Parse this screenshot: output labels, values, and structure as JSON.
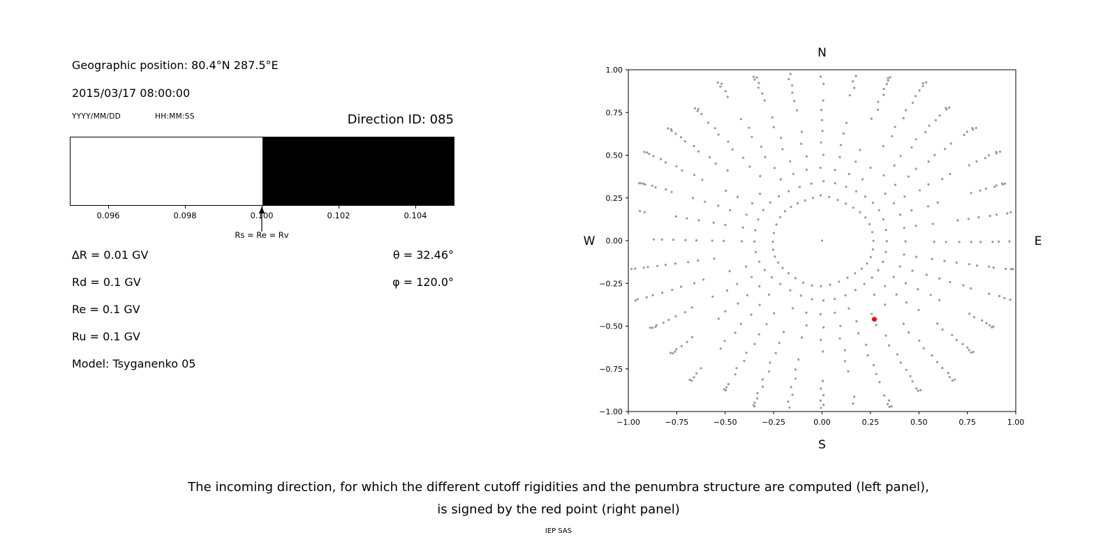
{
  "header": {
    "geo_position": "Geographic position: 80.4°N 287.5°E",
    "datetime": "2015/03/17 08:00:00",
    "date_format_label": "YYYY/MM/DD",
    "time_format_label": "HH:MM:SS",
    "direction_id": "Direction ID: 085"
  },
  "left_panel": {
    "arrow_label": "Rs = Re = Rv",
    "params_left": [
      "∆R = 0.01 GV",
      "Rd = 0.1 GV",
      "Re = 0.1 GV",
      "Ru = 0.1 GV",
      "Model: Tsyganenko 05"
    ],
    "params_right": [
      "θ = 32.46°",
      "φ = 120.0°"
    ]
  },
  "caption": {
    "line1": "The incoming direction, for which the different cutoff rigidities and the penumbra structure are computed (left panel),",
    "line2": "is signed by the red point (right panel)"
  },
  "footer": "IEP SAS",
  "colors": {
    "allowed": "#ffffff",
    "forbidden": "#000000",
    "dots": "#999999",
    "selected": "#ff0000",
    "axis": "#000000"
  },
  "chart_data": [
    {
      "type": "area",
      "name": "penumbra",
      "title": "Direction ID: 085",
      "xlabel": "",
      "xlim": [
        0.095,
        0.105
      ],
      "xticks": [
        0.096,
        0.098,
        0.1,
        0.102,
        0.104
      ],
      "tick_decimals": 3,
      "regions": [
        {
          "from": 0.095,
          "to": 0.1,
          "state": "allowed",
          "color": "#ffffff"
        },
        {
          "from": 0.1,
          "to": 0.105,
          "state": "forbidden",
          "color": "#000000"
        }
      ],
      "annotation": {
        "x": 0.1,
        "label": "Rs = Re = Rv"
      },
      "values": {
        "delta_R": 0.01,
        "Rd": 0.1,
        "Re": 0.1,
        "Ru": 0.1,
        "units": "GV",
        "model": "Tsyganenko 05"
      }
    },
    {
      "type": "scatter",
      "name": "incoming-directions",
      "xlim": [
        -1.0,
        1.0
      ],
      "ylim": [
        -1.0,
        1.0
      ],
      "xticks": [
        -1.0,
        -0.75,
        -0.5,
        -0.25,
        0.0,
        0.25,
        0.5,
        0.75,
        1.0
      ],
      "yticks": [
        -1.0,
        -0.75,
        -0.5,
        -0.25,
        0.0,
        0.25,
        0.5,
        0.75,
        1.0
      ],
      "tick_decimals": 2,
      "grid": false,
      "compass": {
        "top": "N",
        "bottom": "S",
        "left": "W",
        "right": "E"
      },
      "direction_grid": {
        "azimuth_deg": {
          "start": 0,
          "step": 10,
          "count": 36
        },
        "zenith_deg": {
          "start": 15,
          "end": 90,
          "step": 5
        },
        "radius_model": "sin(zenith)"
      },
      "center_point": {
        "x": 0.0,
        "y": 0.0
      },
      "selected_point": {
        "x": 0.27,
        "y": -0.46,
        "theta_deg": 32.46,
        "phi_deg": 120.0,
        "color": "#ff0000"
      }
    }
  ]
}
